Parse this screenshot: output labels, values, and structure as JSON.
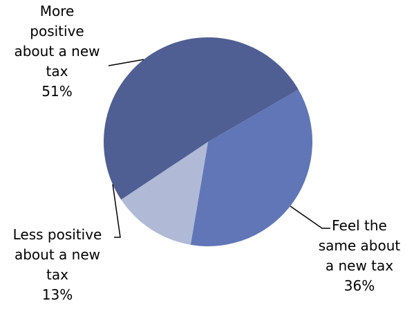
{
  "chart_data": {
    "type": "pie",
    "slices": [
      {
        "label_lines": [
          "More",
          "positive",
          "about a new",
          "tax"
        ],
        "value_label": "51%",
        "value": 51,
        "color": "#4f5f93"
      },
      {
        "label_lines": [
          "Feel the",
          "same about",
          "a new tax"
        ],
        "value_label": "36%",
        "value": 36,
        "color": "#6076b6"
      },
      {
        "label_lines": [
          "Less positive",
          "about a new",
          "tax"
        ],
        "value_label": "13%",
        "value": 13,
        "color": "#b0b9d6"
      }
    ],
    "title": "",
    "legend": "none"
  }
}
